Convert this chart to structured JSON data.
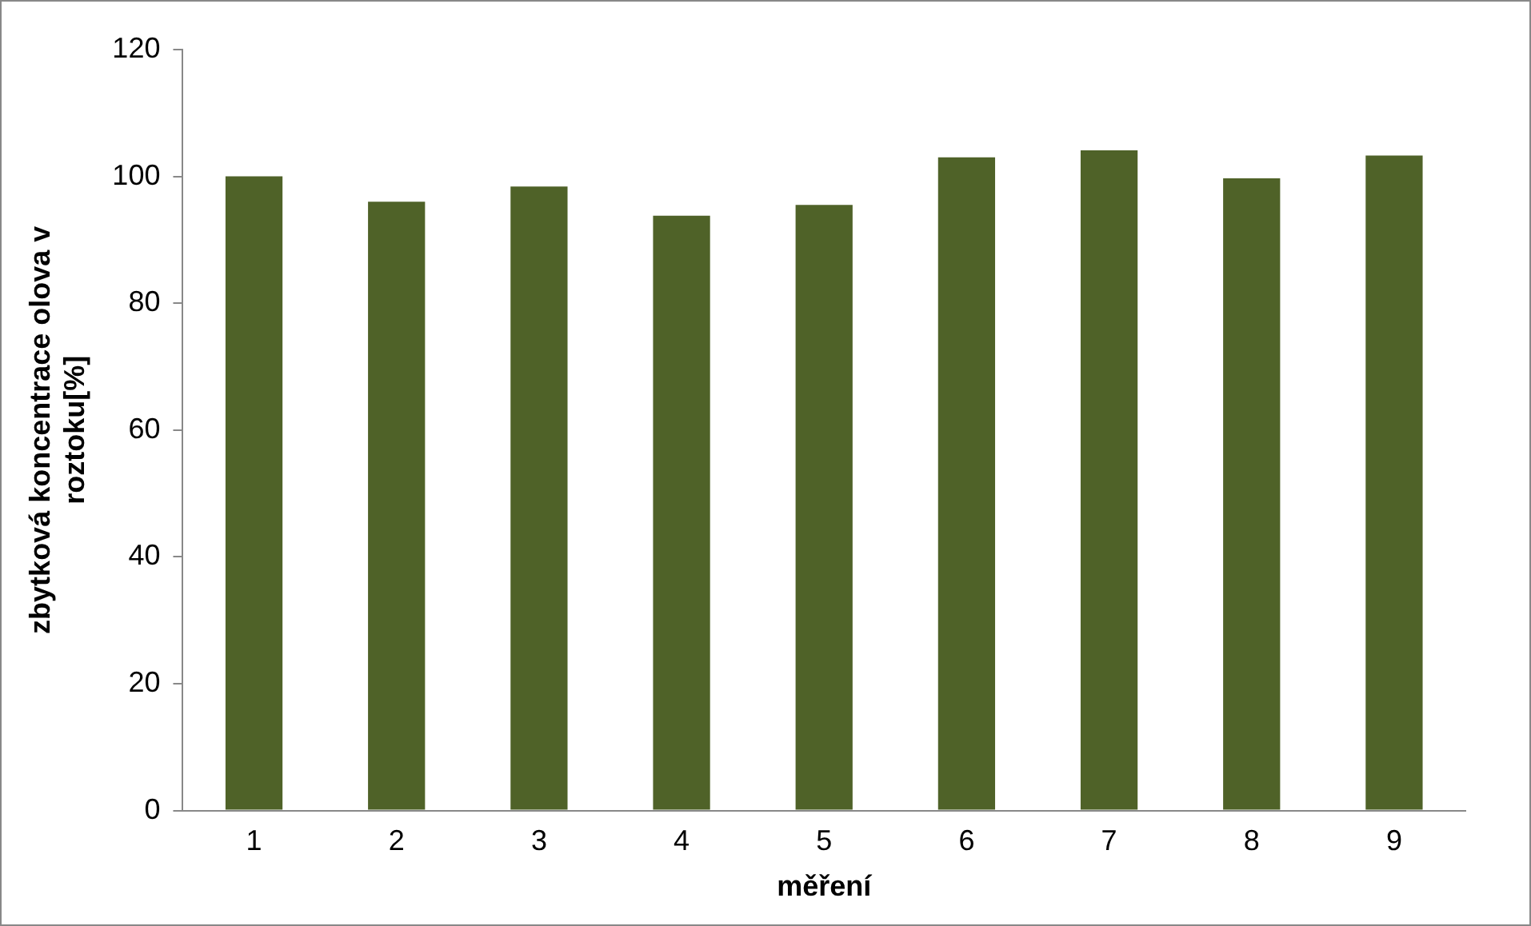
{
  "chart_data": {
    "type": "bar",
    "xlabel": "měření",
    "ylabel": "zbytková koncentrace olova v roztoku[%]",
    "categories": [
      "1",
      "2",
      "3",
      "4",
      "5",
      "6",
      "7",
      "8",
      "9"
    ],
    "values": [
      100,
      96,
      98.4,
      93.8,
      95.5,
      103,
      104.1,
      99.7,
      103.3
    ],
    "color": "#4f6228",
    "ylim": [
      0,
      120
    ],
    "yticks": [
      0,
      20,
      40,
      60,
      80,
      100,
      120
    ],
    "grid": false,
    "legend": false
  }
}
